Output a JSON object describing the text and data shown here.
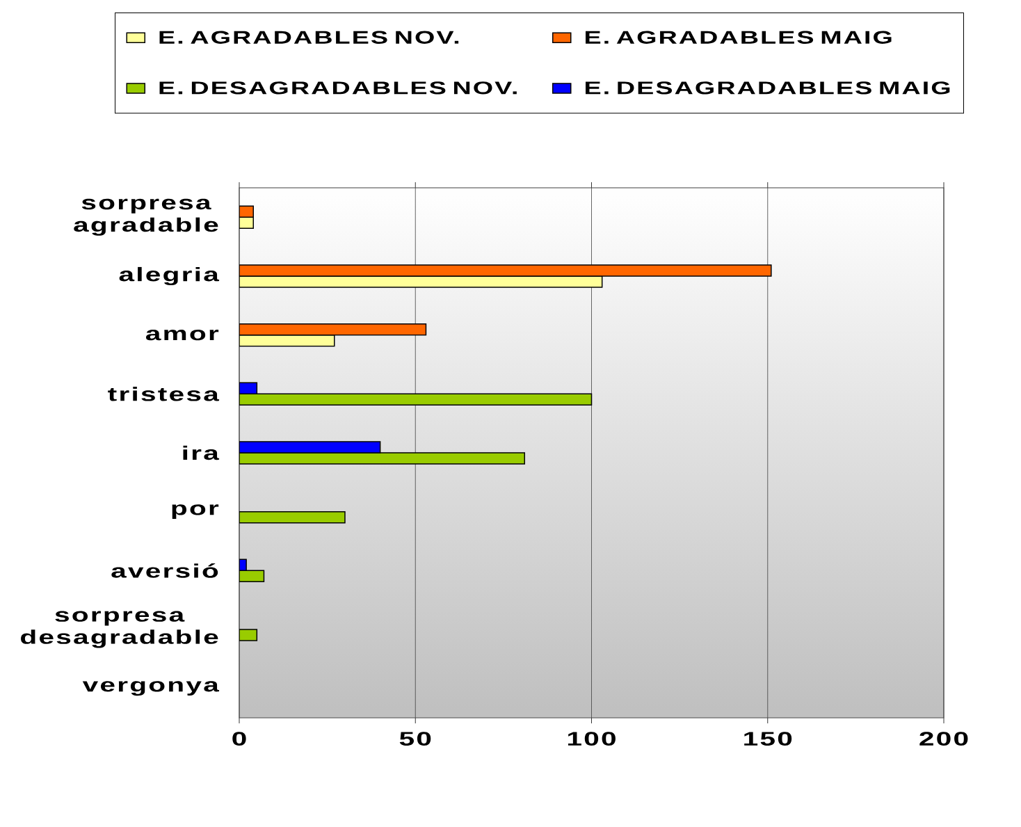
{
  "chart_data": {
    "type": "bar",
    "orientation": "horizontal",
    "categories": [
      "sorpresa agradable",
      "alegria",
      "amor",
      "tristesa",
      "ira",
      "por",
      "aversió",
      "sorpresa desagradable",
      "vergonya"
    ],
    "series": [
      {
        "name": "E. AGRADABLES NOV.",
        "color": "#ffff99",
        "values": [
          4,
          103,
          27,
          null,
          null,
          null,
          null,
          null,
          null
        ]
      },
      {
        "name": "E. AGRADABLES MAIG",
        "color": "#ff6600",
        "values": [
          4,
          151,
          53,
          null,
          null,
          null,
          null,
          null,
          null
        ]
      },
      {
        "name": "E. DESAGRADABLES NOV.",
        "color": "#99cc00",
        "values": [
          null,
          null,
          null,
          100,
          81,
          30,
          7,
          5,
          null
        ]
      },
      {
        "name": "E. DESAGRADABLES MAIG",
        "color": "#0000ff",
        "values": [
          null,
          null,
          null,
          5,
          40,
          null,
          2,
          null,
          null
        ]
      }
    ],
    "xlim": [
      0,
      200
    ],
    "xticks": [
      0,
      50,
      100,
      150,
      200
    ],
    "grid": "x",
    "legend": "top"
  }
}
